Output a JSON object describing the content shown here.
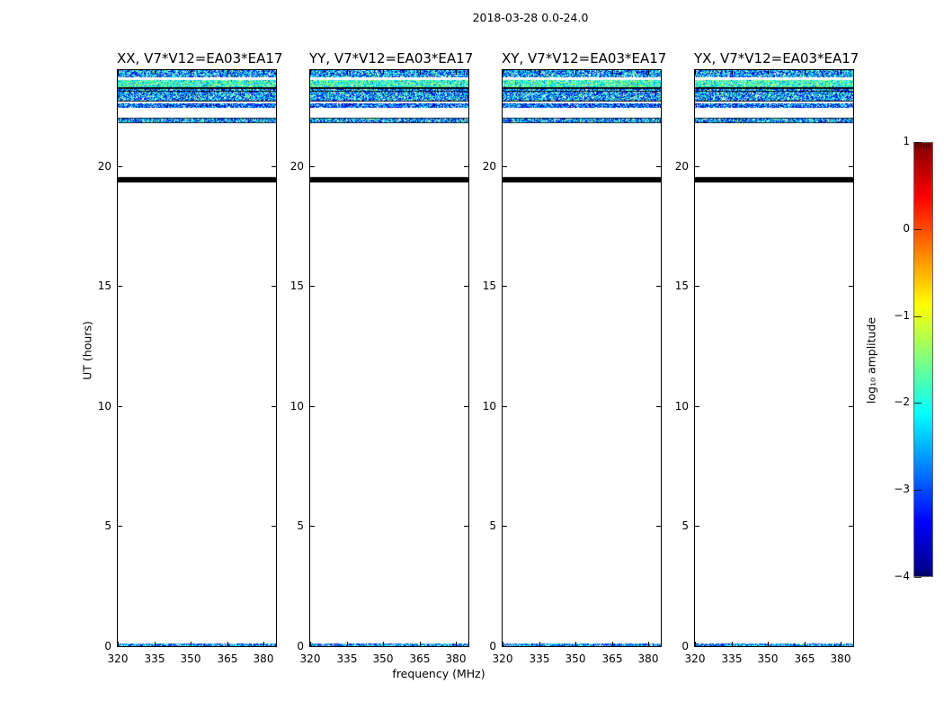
{
  "figure": {
    "suptitle": "2018-03-28 0.0-24.0",
    "xlabel": "frequency (MHz)",
    "ylabel": "UT (hours)",
    "background": "#ffffff"
  },
  "panels": [
    {
      "id": "xx",
      "title": "XX, V7*V12=EA03*EA17"
    },
    {
      "id": "yy",
      "title": "YY, V7*V12=EA03*EA17"
    },
    {
      "id": "xy",
      "title": "XY, V7*V12=EA03*EA17"
    },
    {
      "id": "yx",
      "title": "YX, V7*V12=EA03*EA17"
    }
  ],
  "axes": {
    "x": {
      "lim": [
        320,
        385
      ],
      "ticks": [
        {
          "value": 320,
          "label": "320"
        },
        {
          "value": 335,
          "label": "335"
        },
        {
          "value": 350,
          "label": "350"
        },
        {
          "value": 365,
          "label": "365"
        },
        {
          "value": 380,
          "label": "380"
        }
      ]
    },
    "y": {
      "lim": [
        0,
        24
      ],
      "ticks": [
        {
          "value": 0,
          "label": "0"
        },
        {
          "value": 5,
          "label": "5"
        },
        {
          "value": 10,
          "label": "10"
        },
        {
          "value": 15,
          "label": "15"
        },
        {
          "value": 20,
          "label": "20"
        }
      ]
    }
  },
  "colorbar": {
    "label": "log₁₀ amplitude",
    "vmin": -4,
    "vmax": 1,
    "colormap": "jet",
    "ticks": [
      {
        "value": 1,
        "label": "1"
      },
      {
        "value": 0,
        "label": "0"
      },
      {
        "value": -1,
        "label": "−1"
      },
      {
        "value": -2,
        "label": "−2"
      },
      {
        "value": -3,
        "label": "−3"
      },
      {
        "value": -4,
        "label": "−4"
      }
    ],
    "stops": [
      [
        "#7f0000",
        0
      ],
      [
        "#ff0000",
        0.125
      ],
      [
        "#ffff00",
        0.375
      ],
      [
        "#00ffff",
        0.625
      ],
      [
        "#0000ff",
        0.875
      ],
      [
        "#00007f",
        1
      ]
    ]
  },
  "chart_data": {
    "type": "heatmap",
    "title": "2018-03-28 0.0-24.0",
    "subplot_titles": [
      "XX, V7*V12=EA03*EA17",
      "YY, V7*V12=EA03*EA17",
      "XY, V7*V12=EA03*EA17",
      "YX, V7*V12=EA03*EA17"
    ],
    "xlabel": "frequency (MHz)",
    "ylabel": "UT (hours)",
    "xlim": [
      320,
      385
    ],
    "ylim": [
      0,
      24
    ],
    "x_ticks": [
      320,
      335,
      350,
      365,
      380
    ],
    "y_ticks": [
      0,
      5,
      10,
      15,
      20
    ],
    "colorbar_label": "log₁₀ amplitude",
    "clim": [
      -4,
      1
    ],
    "colormap": "jet",
    "grid": false,
    "legend": "none",
    "description": "Four polarization dynamic spectra; noisy emission bands (log10 amp ~ -1 to -4, cyan/blue) near UT 21.8-24.0, a solid black flagged band near UT 19.3-19.55, thin noise line at UT 0-0.1, white (blank) elsewhere; pattern repeats in all four panels",
    "bands": [
      {
        "ut_top": 24.0,
        "ut_bottom": 23.7,
        "kind": "noise",
        "level": "medium"
      },
      {
        "ut_top": 23.59,
        "ut_bottom": 23.29,
        "kind": "noise",
        "level": "bright"
      },
      {
        "ut_top": 23.29,
        "ut_bottom": 23.21,
        "kind": "solid",
        "color": "#00060f"
      },
      {
        "ut_top": 23.21,
        "ut_bottom": 22.95,
        "kind": "noise",
        "level": "medium"
      },
      {
        "ut_top": 23.13,
        "ut_bottom": 23.09,
        "kind": "solid",
        "color": "#041228"
      },
      {
        "ut_top": 22.95,
        "ut_bottom": 22.73,
        "kind": "noise",
        "level": "medium"
      },
      {
        "ut_top": 22.73,
        "ut_bottom": 22.7,
        "kind": "solid",
        "color": "#00060f"
      },
      {
        "ut_top": 22.62,
        "ut_bottom": 22.43,
        "kind": "noise",
        "level": "dark"
      },
      {
        "ut_top": 22.02,
        "ut_bottom": 21.79,
        "kind": "noise",
        "level": "medium",
        "edges": true
      },
      {
        "ut_top": 19.54,
        "ut_bottom": 19.32,
        "kind": "solid",
        "color": "#000000"
      },
      {
        "ut_top": 0.11,
        "ut_bottom": 0.0,
        "kind": "noise",
        "level": "sparse"
      }
    ],
    "noise_levels": {
      "medium": {
        "skip": 0.1,
        "base": -1.3,
        "range": 2.6,
        "navy": 0.03
      },
      "bright": {
        "skip": 0.04,
        "base": -1.05,
        "range": 1.7,
        "navy": 0.01
      },
      "dark": {
        "skip": 0.08,
        "base": -1.8,
        "range": 2.2,
        "navy": 0.12
      },
      "sparse": {
        "skip": 0.1,
        "base": -1.5,
        "range": 2.3,
        "navy": 0.05
      }
    }
  }
}
